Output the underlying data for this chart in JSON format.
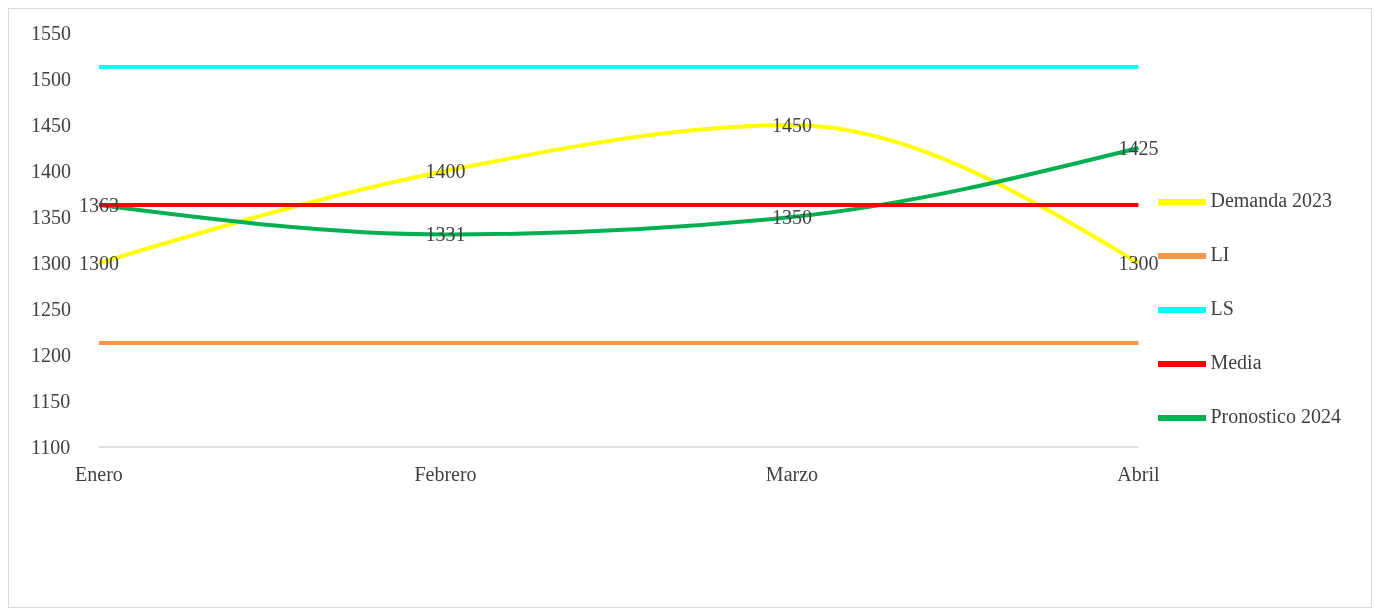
{
  "chart_data": {
    "type": "line",
    "categories": [
      "Enero",
      "Febrero",
      "Marzo",
      "Abril"
    ],
    "series": [
      {
        "name": "Demanda 2023",
        "color": "#ffff00",
        "values": [
          1300,
          1400,
          1450,
          1300
        ],
        "value_labels": [
          "1300",
          "1400",
          "1450",
          "1300"
        ]
      },
      {
        "name": "Pronostico 2024",
        "color": "#00b050",
        "values": [
          1363,
          1331,
          1350,
          1425
        ],
        "value_labels": [
          "1363",
          "1331",
          "1350",
          "1425"
        ]
      },
      {
        "name": "Media",
        "color": "#ff0000",
        "values": [
          1363,
          1363,
          1363,
          1363
        ]
      },
      {
        "name": "LS",
        "color": "#00ffff",
        "values": [
          1513,
          1513,
          1513,
          1513
        ]
      },
      {
        "name": "LI",
        "color": "#f79646",
        "values": [
          1213,
          1213,
          1213,
          1213
        ]
      }
    ],
    "ylim": [
      1100,
      1550
    ],
    "yticks": [
      1100,
      1150,
      1200,
      1250,
      1300,
      1350,
      1400,
      1450,
      1500,
      1550
    ],
    "grid": false,
    "legend": "right",
    "marker": "none",
    "line_style": "solid"
  }
}
